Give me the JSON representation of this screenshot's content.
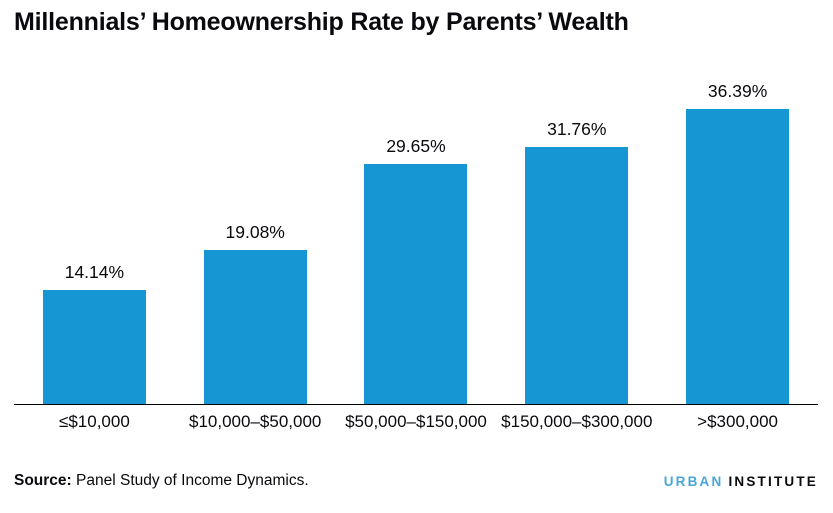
{
  "chart_data": {
    "type": "bar",
    "title": "Millennials’ Homeownership Rate by Parents’ Wealth",
    "categories": [
      "≤$10,000",
      "$10,000–$50,000",
      "$50,000–$150,000",
      "$150,000–$300,000",
      ">$300,000"
    ],
    "values": [
      14.14,
      19.08,
      29.65,
      31.76,
      36.39
    ],
    "data_labels": [
      "14.14%",
      "19.08%",
      "29.65%",
      "31.76%",
      "36.39%"
    ],
    "xlabel": "",
    "ylabel": "",
    "ylim": [
      0,
      42.5
    ],
    "grid": false,
    "legend": false,
    "bar_color": "#1696d2",
    "axis_color": "#000000"
  },
  "footer": {
    "source_label": "Source:",
    "source_text": "Panel Study of Income Dynamics.",
    "logo": {
      "urban": "URBAN",
      "institute": "INSTITUTE",
      "urban_color": "#4aa5d8",
      "institute_color": "#0a0a0e"
    }
  }
}
